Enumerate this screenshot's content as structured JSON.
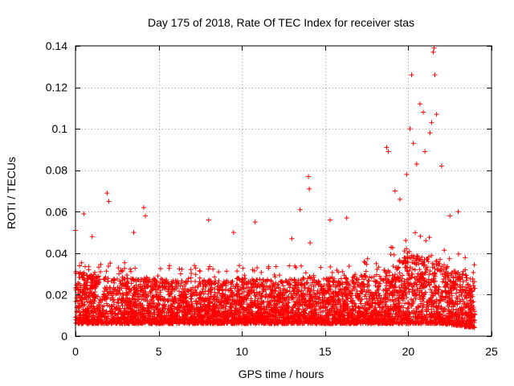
{
  "chart_data": {
    "type": "scatter",
    "title": "Day 175 of 2018, Rate Of TEC Index for receiver stas",
    "xlabel": "GPS time / hours",
    "ylabel": "ROTI / TECUs",
    "xlim": [
      0,
      25
    ],
    "ylim": [
      0,
      0.14
    ],
    "grid": true,
    "marker": "+",
    "color": "#ff0000",
    "x_ticks": [
      0,
      5,
      10,
      15,
      20,
      25
    ],
    "x_tick_labels": [
      "0",
      "5",
      "10",
      "15",
      "20",
      "25"
    ],
    "y_ticks": [
      0,
      0.02,
      0.04,
      0.06,
      0.08,
      0.1,
      0.12,
      0.14
    ],
    "y_tick_labels": [
      "0",
      "0.02",
      "0.04",
      "0.06",
      "0.08",
      "0.1",
      "0.12",
      "0.14"
    ],
    "series": [
      {
        "name": "ROTI",
        "x_range": [
          0,
          24
        ],
        "baseline_envelope": {
          "hours": [
            0,
            2,
            4,
            6,
            8,
            10,
            12,
            14,
            16,
            18,
            19,
            20,
            21,
            22,
            23,
            24
          ],
          "typical_max": [
            0.04,
            0.036,
            0.036,
            0.034,
            0.034,
            0.036,
            0.034,
            0.036,
            0.036,
            0.038,
            0.045,
            0.05,
            0.05,
            0.045,
            0.04,
            0.035
          ],
          "typical_min": [
            0.006,
            0.006,
            0.006,
            0.006,
            0.006,
            0.006,
            0.006,
            0.006,
            0.006,
            0.006,
            0.006,
            0.006,
            0.006,
            0.006,
            0.005,
            0.004
          ]
        },
        "notable_points": [
          {
            "x": 0.0,
            "y": 0.051
          },
          {
            "x": 0.5,
            "y": 0.059
          },
          {
            "x": 1.0,
            "y": 0.048
          },
          {
            "x": 1.9,
            "y": 0.069
          },
          {
            "x": 2.0,
            "y": 0.065
          },
          {
            "x": 3.5,
            "y": 0.05
          },
          {
            "x": 4.1,
            "y": 0.062
          },
          {
            "x": 4.2,
            "y": 0.058
          },
          {
            "x": 8.0,
            "y": 0.056
          },
          {
            "x": 9.5,
            "y": 0.05
          },
          {
            "x": 10.8,
            "y": 0.055
          },
          {
            "x": 13.0,
            "y": 0.047
          },
          {
            "x": 13.5,
            "y": 0.061
          },
          {
            "x": 14.0,
            "y": 0.077
          },
          {
            "x": 14.05,
            "y": 0.071
          },
          {
            "x": 14.1,
            "y": 0.045
          },
          {
            "x": 15.3,
            "y": 0.056
          },
          {
            "x": 16.3,
            "y": 0.057
          },
          {
            "x": 18.7,
            "y": 0.091
          },
          {
            "x": 18.8,
            "y": 0.089
          },
          {
            "x": 19.2,
            "y": 0.07
          },
          {
            "x": 19.5,
            "y": 0.066
          },
          {
            "x": 19.9,
            "y": 0.078
          },
          {
            "x": 20.1,
            "y": 0.1
          },
          {
            "x": 20.2,
            "y": 0.126
          },
          {
            "x": 20.3,
            "y": 0.093
          },
          {
            "x": 20.5,
            "y": 0.083
          },
          {
            "x": 20.7,
            "y": 0.112
          },
          {
            "x": 20.9,
            "y": 0.108
          },
          {
            "x": 21.0,
            "y": 0.089
          },
          {
            "x": 21.3,
            "y": 0.098
          },
          {
            "x": 21.4,
            "y": 0.103
          },
          {
            "x": 21.5,
            "y": 0.137
          },
          {
            "x": 21.55,
            "y": 0.139
          },
          {
            "x": 21.6,
            "y": 0.126
          },
          {
            "x": 21.7,
            "y": 0.107
          },
          {
            "x": 22.0,
            "y": 0.082
          },
          {
            "x": 22.5,
            "y": 0.058
          },
          {
            "x": 23.0,
            "y": 0.06
          }
        ]
      }
    ]
  }
}
